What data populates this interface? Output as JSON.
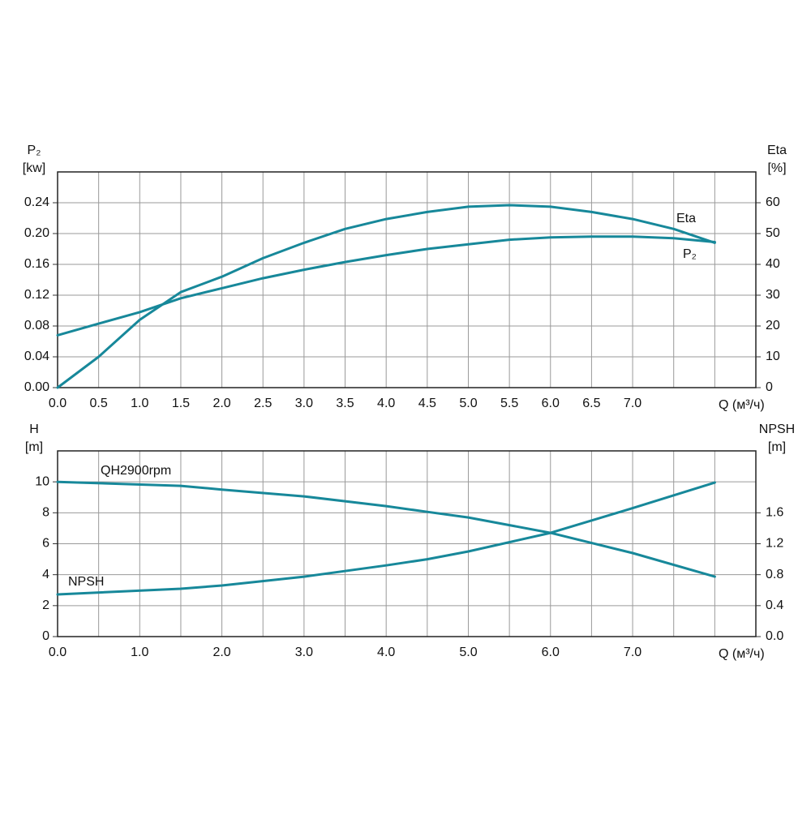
{
  "chart_data": [
    {
      "type": "line",
      "ylabel": [
        "P₂",
        "[kw]"
      ],
      "y2label": [
        "Eta",
        "[%]"
      ],
      "xlabel": "Q (м³/ч)",
      "x": [
        0,
        0.5,
        1.0,
        1.5,
        2.0,
        2.5,
        3.0,
        3.5,
        4.0,
        4.5,
        5.0,
        5.5,
        6.0,
        6.5,
        7.0,
        7.5,
        8.0
      ],
      "series": [
        {
          "name": "Eta",
          "color": "#17889a",
          "axis": "y2",
          "values": [
            0,
            10,
            22,
            31,
            36,
            42,
            47,
            51.5,
            54.7,
            57,
            58.7,
            59.2,
            58.7,
            57,
            54.7,
            51.5,
            47
          ]
        },
        {
          "name": "P₂",
          "color": "#17889a",
          "axis": "y",
          "values": [
            0.068,
            0.083,
            0.098,
            0.116,
            0.129,
            0.142,
            0.153,
            0.163,
            0.172,
            0.18,
            0.186,
            0.192,
            0.195,
            0.196,
            0.196,
            0.194,
            0.189
          ]
        }
      ],
      "xlim": [
        0,
        8.5
      ],
      "ylim": [
        0,
        0.28
      ],
      "y2lim": [
        0,
        70
      ],
      "xticks": [
        {
          "value": 0,
          "label": "0.0"
        },
        0.5,
        {
          "value": 1,
          "label": "1.0"
        },
        1.5,
        {
          "value": 2,
          "label": "2.0"
        },
        2.5,
        {
          "value": 3,
          "label": "3.0"
        },
        3.5,
        {
          "value": 4,
          "label": "4.0"
        },
        4.5,
        {
          "value": 5,
          "label": "5.0"
        },
        5.5,
        {
          "value": 6,
          "label": "6.0"
        },
        6.5,
        {
          "value": 7,
          "label": "7.0"
        }
      ],
      "xgrid": [
        7.5,
        8.0
      ],
      "yticks": [
        {
          "value": 0,
          "label": "0.00"
        },
        0.04,
        0.08,
        0.12,
        0.16,
        {
          "value": 0.2,
          "label": "0.20"
        },
        0.24
      ],
      "y2ticks": [
        0,
        10,
        20,
        30,
        40,
        50,
        60
      ],
      "grid": true
    },
    {
      "type": "line",
      "ylabel": [
        "H",
        "[m]"
      ],
      "y2label": [
        "NPSH",
        "[m]"
      ],
      "xlabel": "Q (м³/ч)",
      "x": [
        0,
        1.5,
        2.0,
        3.0,
        4.0,
        4.5,
        5.0,
        6.0,
        7.0,
        8.0
      ],
      "series": [
        {
          "name": "QH2900rpm",
          "color": "#17889a",
          "axis": "y",
          "values": [
            10.0,
            9.74,
            9.5,
            9.06,
            8.43,
            8.06,
            7.7,
            6.7,
            5.4,
            3.87
          ]
        },
        {
          "name": "NPSH",
          "color": "#17889a",
          "axis": "y2",
          "values": [
            0.545,
            0.618,
            0.66,
            0.775,
            0.92,
            1.0,
            1.1,
            1.34,
            1.66,
            1.99
          ]
        }
      ],
      "xlim": [
        0,
        8.5
      ],
      "ylim": [
        0,
        12
      ],
      "y2lim": [
        0,
        2.4
      ],
      "xticks": [
        {
          "value": 0,
          "label": "0.0"
        },
        {
          "value": 1,
          "label": "1.0"
        },
        {
          "value": 2,
          "label": "2.0"
        },
        {
          "value": 3,
          "label": "3.0"
        },
        {
          "value": 4,
          "label": "4.0"
        },
        {
          "value": 5,
          "label": "5.0"
        },
        {
          "value": 6,
          "label": "6.0"
        },
        {
          "value": 7,
          "label": "7.0"
        }
      ],
      "xgrid": [
        0.5,
        1.5,
        2.5,
        3.5,
        4.5,
        5.5,
        6.5,
        7.5,
        8.0
      ],
      "yticks": [
        0,
        2,
        4,
        6,
        8,
        10
      ],
      "y2ticks": [
        {
          "value": 0,
          "label": "0.0"
        },
        0.4,
        0.8,
        1.2,
        1.6
      ],
      "grid": true
    }
  ]
}
